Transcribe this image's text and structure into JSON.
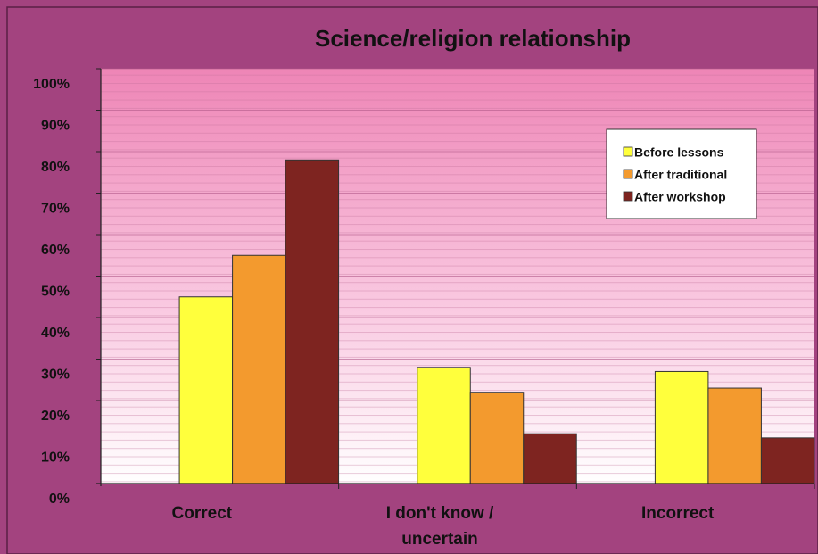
{
  "chart_data": {
    "type": "bar",
    "title": "Science/religion relationship",
    "categories": [
      "Correct",
      "I don't know / uncertain",
      "Incorrect"
    ],
    "series": [
      {
        "name": "Before lessons",
        "color": "#ffff3c",
        "values": [
          45,
          28,
          27
        ]
      },
      {
        "name": "After traditional",
        "color": "#f39a2e",
        "values": [
          55,
          22,
          23
        ]
      },
      {
        "name": "After workshop",
        "color": "#7e2420",
        "values": [
          78,
          12,
          11
        ]
      }
    ],
    "ylim": [
      0,
      100
    ],
    "yticks": [
      {
        "value": 0,
        "label": "0%"
      },
      {
        "value": 10,
        "label": "10%"
      },
      {
        "value": 20,
        "label": "20%"
      },
      {
        "value": 30,
        "label": "30%"
      },
      {
        "value": 40,
        "label": "40%"
      },
      {
        "value": 50,
        "label": "50%"
      },
      {
        "value": 60,
        "label": "60%"
      },
      {
        "value": 70,
        "label": "70%"
      },
      {
        "value": 80,
        "label": "80%"
      },
      {
        "value": 90,
        "label": "90%"
      },
      {
        "value": 100,
        "label": "100%"
      }
    ],
    "grid": true,
    "legend": "upper right"
  }
}
